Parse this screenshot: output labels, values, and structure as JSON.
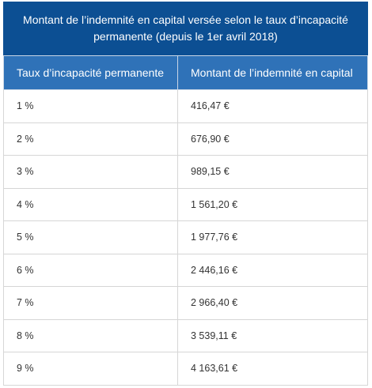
{
  "table": {
    "title": "Montant de l’indemnité en capital versée selon le taux d’incapacité permanente (depuis le 1er avril 2018)",
    "header": [
      "Taux d’incapacité permanente",
      "Montant de l’indemnité en capital"
    ],
    "rows": [
      [
        "1 %",
        "416,47 €"
      ],
      [
        "2 %",
        "676,90 €"
      ],
      [
        "3 %",
        "989,15 €"
      ],
      [
        "4 %",
        "1 561,20 €"
      ],
      [
        "5 %",
        "1 977,76 €"
      ],
      [
        "6 %",
        "2 446,16 €"
      ],
      [
        "7 %",
        "2 966,40 €"
      ],
      [
        "8 %",
        "3 539,11 €"
      ],
      [
        "9 %",
        "4 163,61 €"
      ]
    ]
  }
}
